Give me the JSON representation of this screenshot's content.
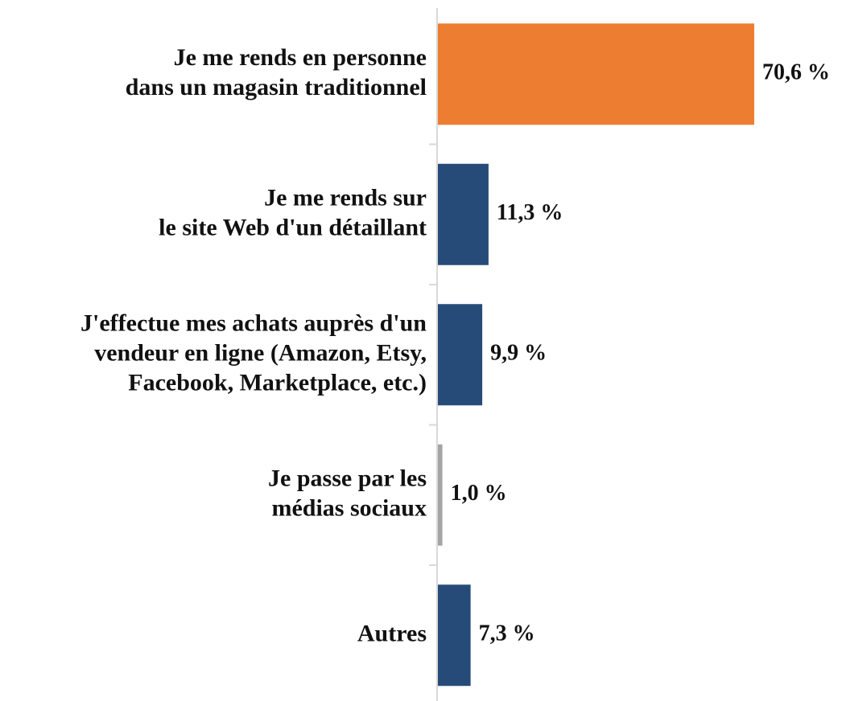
{
  "chart_data": {
    "type": "barh",
    "categories": [
      [
        "Je me rends en personne",
        "dans un magasin traditionnel"
      ],
      [
        "Je me rends sur",
        "le site Web d'un détaillant"
      ],
      [
        "J'effectue mes achats auprès d'un",
        "vendeur en ligne (Amazon, Etsy,",
        "Facebook, Marketplace, etc.)"
      ],
      [
        "Je passe par les",
        "médias sociaux"
      ],
      [
        "Autres"
      ]
    ],
    "values": [
      70.6,
      11.3,
      9.9,
      1.0,
      7.3
    ],
    "value_labels": [
      "70,6 %",
      "11,3 %",
      "9,9 %",
      "1,0 %",
      "7,3 %"
    ],
    "colors": [
      "#ed7d31",
      "#264b78",
      "#264b78",
      "#a5a5a5",
      "#264b78"
    ]
  }
}
